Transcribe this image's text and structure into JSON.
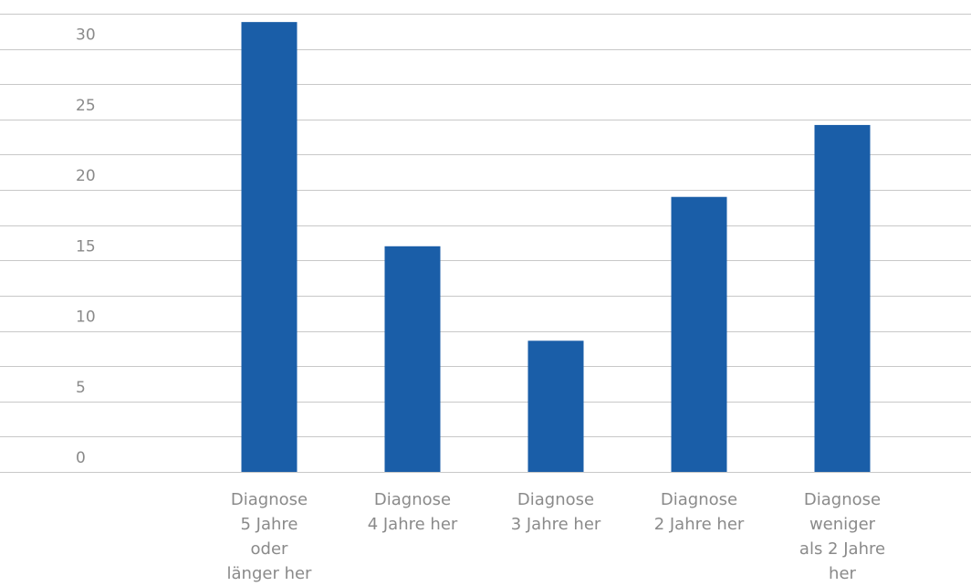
{
  "chart_data": {
    "type": "bar",
    "title": "",
    "xlabel": "",
    "ylabel": "",
    "ylim": [
      0,
      33
    ],
    "yticks": [
      0,
      5,
      10,
      15,
      20,
      25,
      30
    ],
    "grid": true,
    "categories": [
      [
        "Diagnose",
        "5 Jahre",
        "oder",
        "länger her"
      ],
      [
        "Diagnose",
        "4 Jahre her"
      ],
      [
        "Diagnose",
        "3 Jahre her"
      ],
      [
        "Diagnose",
        "2 Jahre her"
      ],
      [
        "Diagnose",
        "weniger",
        "als 2 Jahre",
        "her"
      ]
    ],
    "values": [
      31.9,
      16.0,
      9.3,
      19.5,
      24.6
    ],
    "colors": {
      "bar": "#1a5ea8",
      "grid": "#c8c8c8",
      "text": "#8a8a8a"
    }
  }
}
